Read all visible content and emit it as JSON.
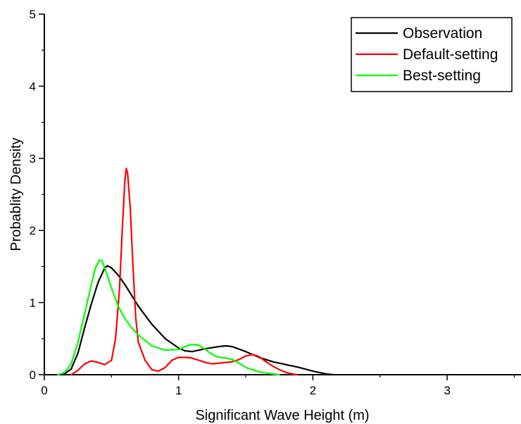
{
  "chart_data": {
    "type": "line",
    "title": "",
    "xlabel": "Significant Wave Height (m)",
    "ylabel": "Probablity Density",
    "xlim": [
      0,
      3.55
    ],
    "ylim": [
      0,
      5
    ],
    "x_ticks": [
      0,
      1,
      2,
      3
    ],
    "y_ticks": [
      0,
      1,
      2,
      3,
      4,
      5
    ],
    "x_tick_labels": [
      "0",
      "1",
      "2",
      "3"
    ],
    "y_tick_labels": [
      "0",
      "1",
      "2",
      "3",
      "4",
      "5"
    ],
    "grid": false,
    "legend_position": "top-right",
    "series": [
      {
        "name": "Observation",
        "color": "#000000",
        "points": [
          [
            0.1,
            0.0
          ],
          [
            0.15,
            0.01
          ],
          [
            0.2,
            0.08
          ],
          [
            0.25,
            0.3
          ],
          [
            0.3,
            0.65
          ],
          [
            0.35,
            0.98
          ],
          [
            0.4,
            1.28
          ],
          [
            0.45,
            1.48
          ],
          [
            0.47,
            1.51
          ],
          [
            0.5,
            1.48
          ],
          [
            0.55,
            1.38
          ],
          [
            0.6,
            1.25
          ],
          [
            0.65,
            1.1
          ],
          [
            0.7,
            0.95
          ],
          [
            0.8,
            0.7
          ],
          [
            0.9,
            0.5
          ],
          [
            1.0,
            0.37
          ],
          [
            1.05,
            0.33
          ],
          [
            1.1,
            0.32
          ],
          [
            1.2,
            0.36
          ],
          [
            1.3,
            0.39
          ],
          [
            1.35,
            0.4
          ],
          [
            1.4,
            0.39
          ],
          [
            1.5,
            0.32
          ],
          [
            1.6,
            0.24
          ],
          [
            1.7,
            0.18
          ],
          [
            1.8,
            0.14
          ],
          [
            1.9,
            0.1
          ],
          [
            2.0,
            0.05
          ],
          [
            2.1,
            0.01
          ],
          [
            2.15,
            0.0
          ]
        ]
      },
      {
        "name": "Default-setting",
        "color": "#ff0000",
        "points": [
          [
            0.2,
            0.0
          ],
          [
            0.25,
            0.06
          ],
          [
            0.3,
            0.15
          ],
          [
            0.35,
            0.19
          ],
          [
            0.4,
            0.17
          ],
          [
            0.45,
            0.14
          ],
          [
            0.5,
            0.2
          ],
          [
            0.53,
            0.5
          ],
          [
            0.56,
            1.2
          ],
          [
            0.58,
            2.0
          ],
          [
            0.6,
            2.7
          ],
          [
            0.61,
            2.86
          ],
          [
            0.62,
            2.8
          ],
          [
            0.64,
            2.3
          ],
          [
            0.66,
            1.5
          ],
          [
            0.68,
            0.8
          ],
          [
            0.7,
            0.45
          ],
          [
            0.75,
            0.2
          ],
          [
            0.8,
            0.07
          ],
          [
            0.85,
            0.05
          ],
          [
            0.9,
            0.1
          ],
          [
            0.95,
            0.2
          ],
          [
            1.0,
            0.24
          ],
          [
            1.05,
            0.24
          ],
          [
            1.1,
            0.23
          ],
          [
            1.15,
            0.2
          ],
          [
            1.2,
            0.17
          ],
          [
            1.25,
            0.15
          ],
          [
            1.3,
            0.16
          ],
          [
            1.4,
            0.18
          ],
          [
            1.45,
            0.21
          ],
          [
            1.5,
            0.26
          ],
          [
            1.55,
            0.28
          ],
          [
            1.6,
            0.25
          ],
          [
            1.65,
            0.18
          ],
          [
            1.7,
            0.12
          ],
          [
            1.75,
            0.07
          ],
          [
            1.8,
            0.03
          ],
          [
            1.85,
            0.01
          ],
          [
            1.88,
            0.0
          ]
        ]
      },
      {
        "name": "Best-setting",
        "color": "#00ff00",
        "points": [
          [
            0.1,
            0.0
          ],
          [
            0.15,
            0.03
          ],
          [
            0.2,
            0.15
          ],
          [
            0.25,
            0.45
          ],
          [
            0.3,
            0.85
          ],
          [
            0.35,
            1.25
          ],
          [
            0.38,
            1.48
          ],
          [
            0.41,
            1.59
          ],
          [
            0.43,
            1.58
          ],
          [
            0.45,
            1.48
          ],
          [
            0.5,
            1.2
          ],
          [
            0.55,
            0.95
          ],
          [
            0.6,
            0.78
          ],
          [
            0.65,
            0.65
          ],
          [
            0.7,
            0.55
          ],
          [
            0.8,
            0.4
          ],
          [
            0.9,
            0.34
          ],
          [
            1.0,
            0.35
          ],
          [
            1.05,
            0.39
          ],
          [
            1.1,
            0.42
          ],
          [
            1.15,
            0.41
          ],
          [
            1.2,
            0.35
          ],
          [
            1.25,
            0.28
          ],
          [
            1.3,
            0.24
          ],
          [
            1.35,
            0.23
          ],
          [
            1.4,
            0.21
          ],
          [
            1.45,
            0.16
          ],
          [
            1.5,
            0.1
          ],
          [
            1.6,
            0.04
          ],
          [
            1.7,
            0.01
          ],
          [
            1.75,
            0.0
          ]
        ]
      }
    ]
  }
}
